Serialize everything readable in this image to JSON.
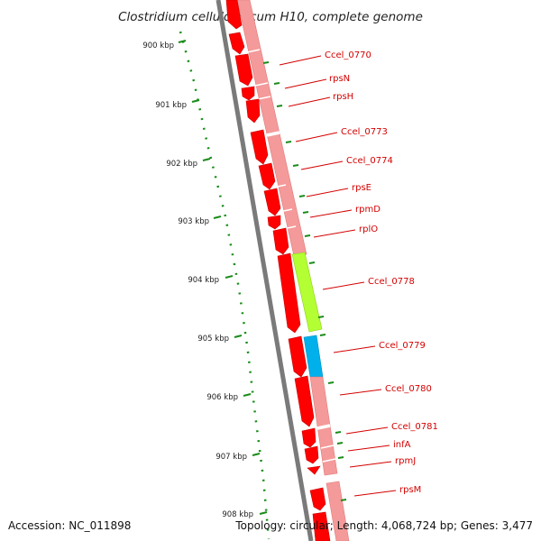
{
  "title": "Clostridium cellulolyticum H10, complete genome",
  "accession": "Accession: NC_011898",
  "topology": "Topology: circular; Length: 4,068,724 bp; Genes: 3,477",
  "kbp_labels": [
    "900 kbp",
    "901 kbp",
    "902 kbp",
    "903 kbp",
    "904 kbp",
    "905 kbp",
    "906 kbp",
    "907 kbp",
    "908 kbp"
  ],
  "gene_labels": [
    "Ccel_0770",
    "rpsN",
    "rpsH",
    "Ccel_0773",
    "Ccel_0774",
    "rpsE",
    "rpmD",
    "rplO",
    "Ccel_0778",
    "Ccel_0779",
    "Ccel_0780",
    "Ccel_0781",
    "infA",
    "rpmJ",
    "rpsM"
  ],
  "colors": {
    "gene_red": "#ff0000",
    "cog_pink": "#f49a9a",
    "cog_green": "#b3ff33",
    "cog_blue": "#00b0ea",
    "tick_green": "#1a8c1a",
    "label_red": "#d40000"
  }
}
